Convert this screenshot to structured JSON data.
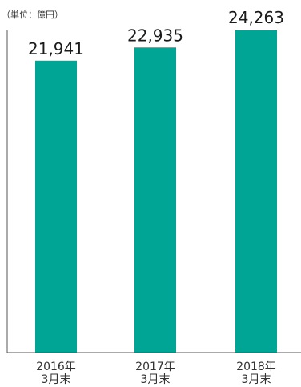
{
  "chart_data": {
    "type": "bar",
    "unit_label": "（単位：億円）",
    "categories": [
      [
        "2016年",
        "3月末"
      ],
      [
        "2017年",
        "3月末"
      ],
      [
        "2018年",
        "3月末"
      ]
    ],
    "values": [
      21941,
      22935,
      24263
    ],
    "value_labels": [
      "21,941",
      "22,935",
      "24,263"
    ],
    "bar_color": "#00A596",
    "ylim": [
      0,
      25000
    ],
    "grid": false
  }
}
